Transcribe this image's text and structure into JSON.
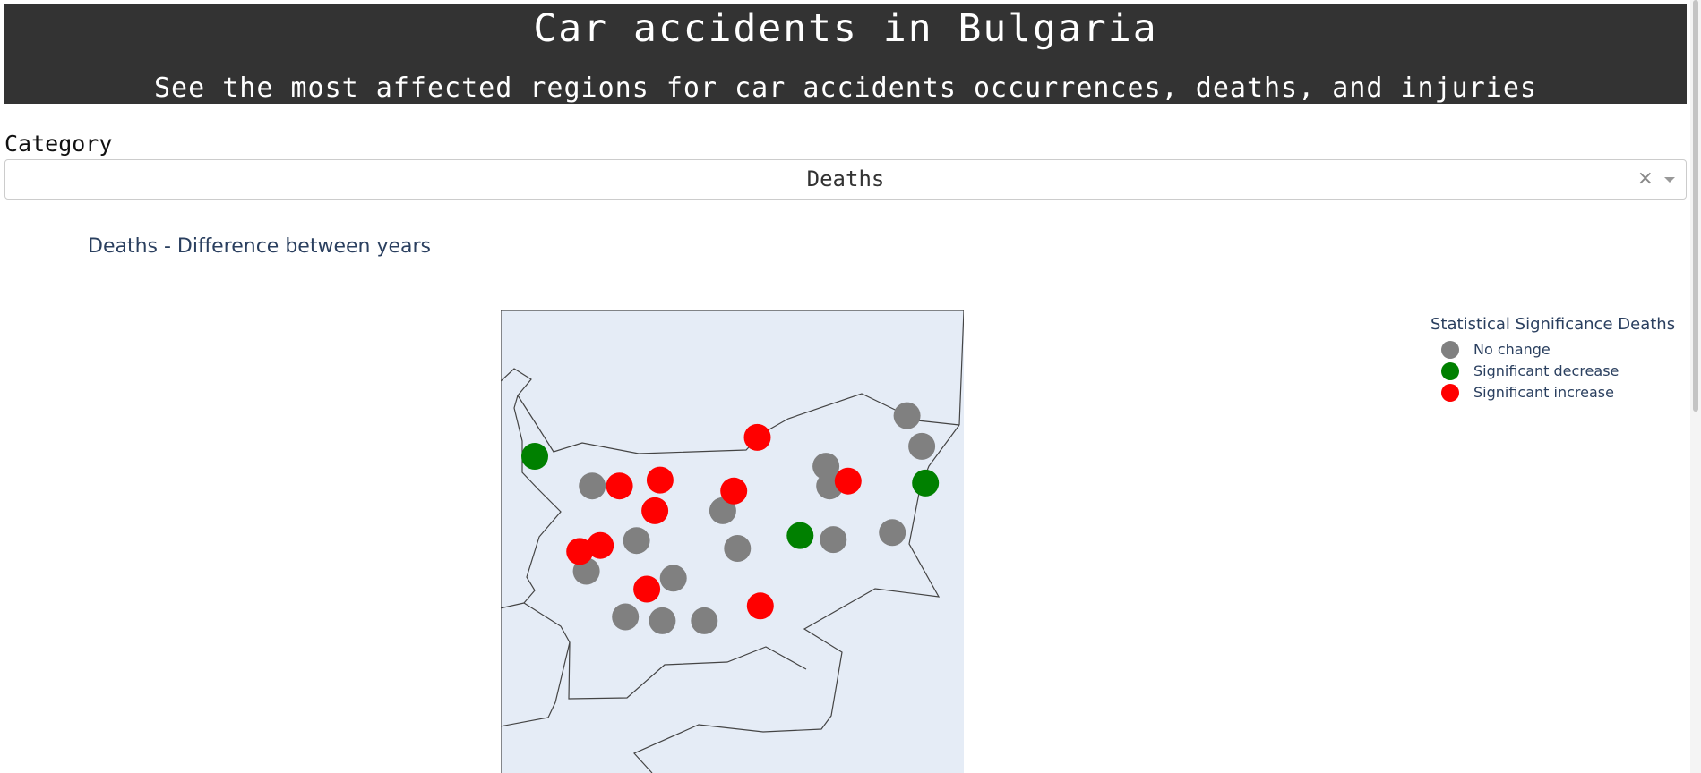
{
  "header": {
    "title": "Car accidents in Bulgaria",
    "subtitle": "See the most affected regions for car accidents occurrences, deaths, and injuries"
  },
  "category": {
    "label": "Category",
    "selected": "Deaths",
    "clear_glyph": "×"
  },
  "chart": {
    "title": "Deaths - Difference between years",
    "legend_title": "Statistical Significance Deaths",
    "colors": {
      "no_change": "#808080",
      "decrease": "#008000",
      "increase": "#ff0000",
      "land": "#e5ecf6"
    },
    "legend": [
      {
        "label": "No change",
        "color": "#808080"
      },
      {
        "label": "Significant decrease",
        "color": "#008000"
      },
      {
        "label": "Significant increase",
        "color": "#ff0000"
      }
    ]
  },
  "chart_data": {
    "type": "scatter",
    "title": "Deaths - Difference between years",
    "legend_title": "Statistical Significance Deaths",
    "series": [
      {
        "name": "No change",
        "color": "#808080",
        "points": [
          {
            "lon": 27.92,
            "lat": 43.93
          },
          {
            "lon": 28.12,
            "lat": 43.62
          },
          {
            "lon": 26.82,
            "lat": 43.42
          },
          {
            "lon": 26.87,
            "lat": 43.22
          },
          {
            "lon": 23.65,
            "lat": 43.22
          },
          {
            "lon": 25.42,
            "lat": 42.97
          },
          {
            "lon": 27.72,
            "lat": 42.75
          },
          {
            "lon": 26.92,
            "lat": 42.68
          },
          {
            "lon": 24.25,
            "lat": 42.67
          },
          {
            "lon": 25.62,
            "lat": 42.59
          },
          {
            "lon": 23.57,
            "lat": 42.36
          },
          {
            "lon": 24.75,
            "lat": 42.29
          },
          {
            "lon": 24.1,
            "lat": 41.9
          },
          {
            "lon": 24.6,
            "lat": 41.86
          },
          {
            "lon": 25.17,
            "lat": 41.86
          }
        ]
      },
      {
        "name": "Significant decrease",
        "color": "#008000",
        "points": [
          {
            "lon": 22.87,
            "lat": 43.52
          },
          {
            "lon": 28.17,
            "lat": 43.25
          },
          {
            "lon": 26.47,
            "lat": 42.72
          }
        ]
      },
      {
        "name": "Significant increase",
        "color": "#ff0000",
        "points": [
          {
            "lon": 25.89,
            "lat": 43.71
          },
          {
            "lon": 24.02,
            "lat": 43.22
          },
          {
            "lon": 24.57,
            "lat": 43.28
          },
          {
            "lon": 27.12,
            "lat": 43.27
          },
          {
            "lon": 25.57,
            "lat": 43.17
          },
          {
            "lon": 24.5,
            "lat": 42.97
          },
          {
            "lon": 23.48,
            "lat": 42.56
          },
          {
            "lon": 23.76,
            "lat": 42.62
          },
          {
            "lon": 24.39,
            "lat": 42.18
          },
          {
            "lon": 25.93,
            "lat": 42.01
          }
        ]
      }
    ]
  }
}
